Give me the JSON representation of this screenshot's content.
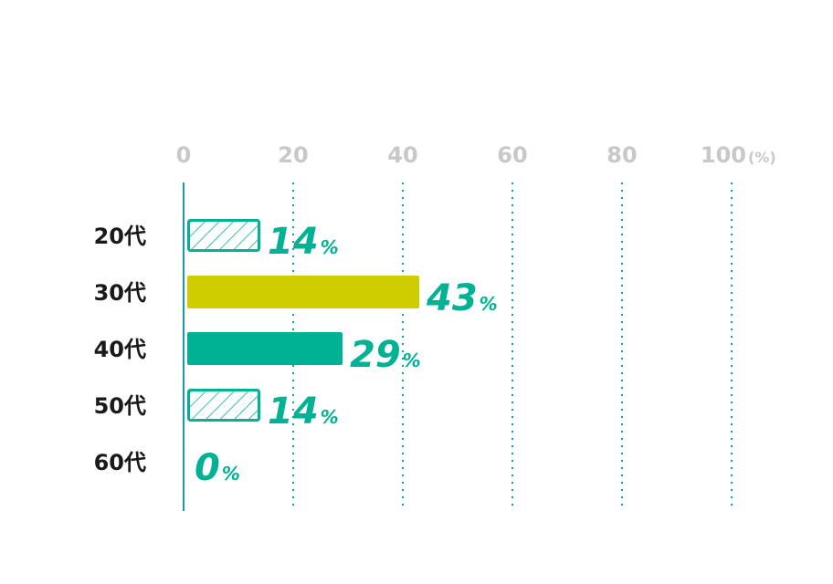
{
  "chart_data": {
    "type": "bar",
    "orientation": "horizontal",
    "categories": [
      "20代",
      "30代",
      "40代",
      "50代",
      "60代"
    ],
    "values": [
      14,
      43,
      29,
      14,
      0
    ],
    "value_suffix": "%",
    "x_ticks": [
      "0",
      "20",
      "40",
      "60",
      "80",
      "100"
    ],
    "x_unit": "(%)",
    "xlim": [
      0,
      100
    ],
    "grid": "vertical dotted",
    "bar_styles": [
      "hatched",
      "solid-lime",
      "solid-teal",
      "hatched",
      "none"
    ],
    "colors": {
      "teal": "#00b294",
      "lime": "#cfcc00",
      "axis": "#1a9aa8",
      "grid": "#1a9aa8",
      "tick": "#c8c8c8",
      "category": "#1a1a1a"
    }
  }
}
